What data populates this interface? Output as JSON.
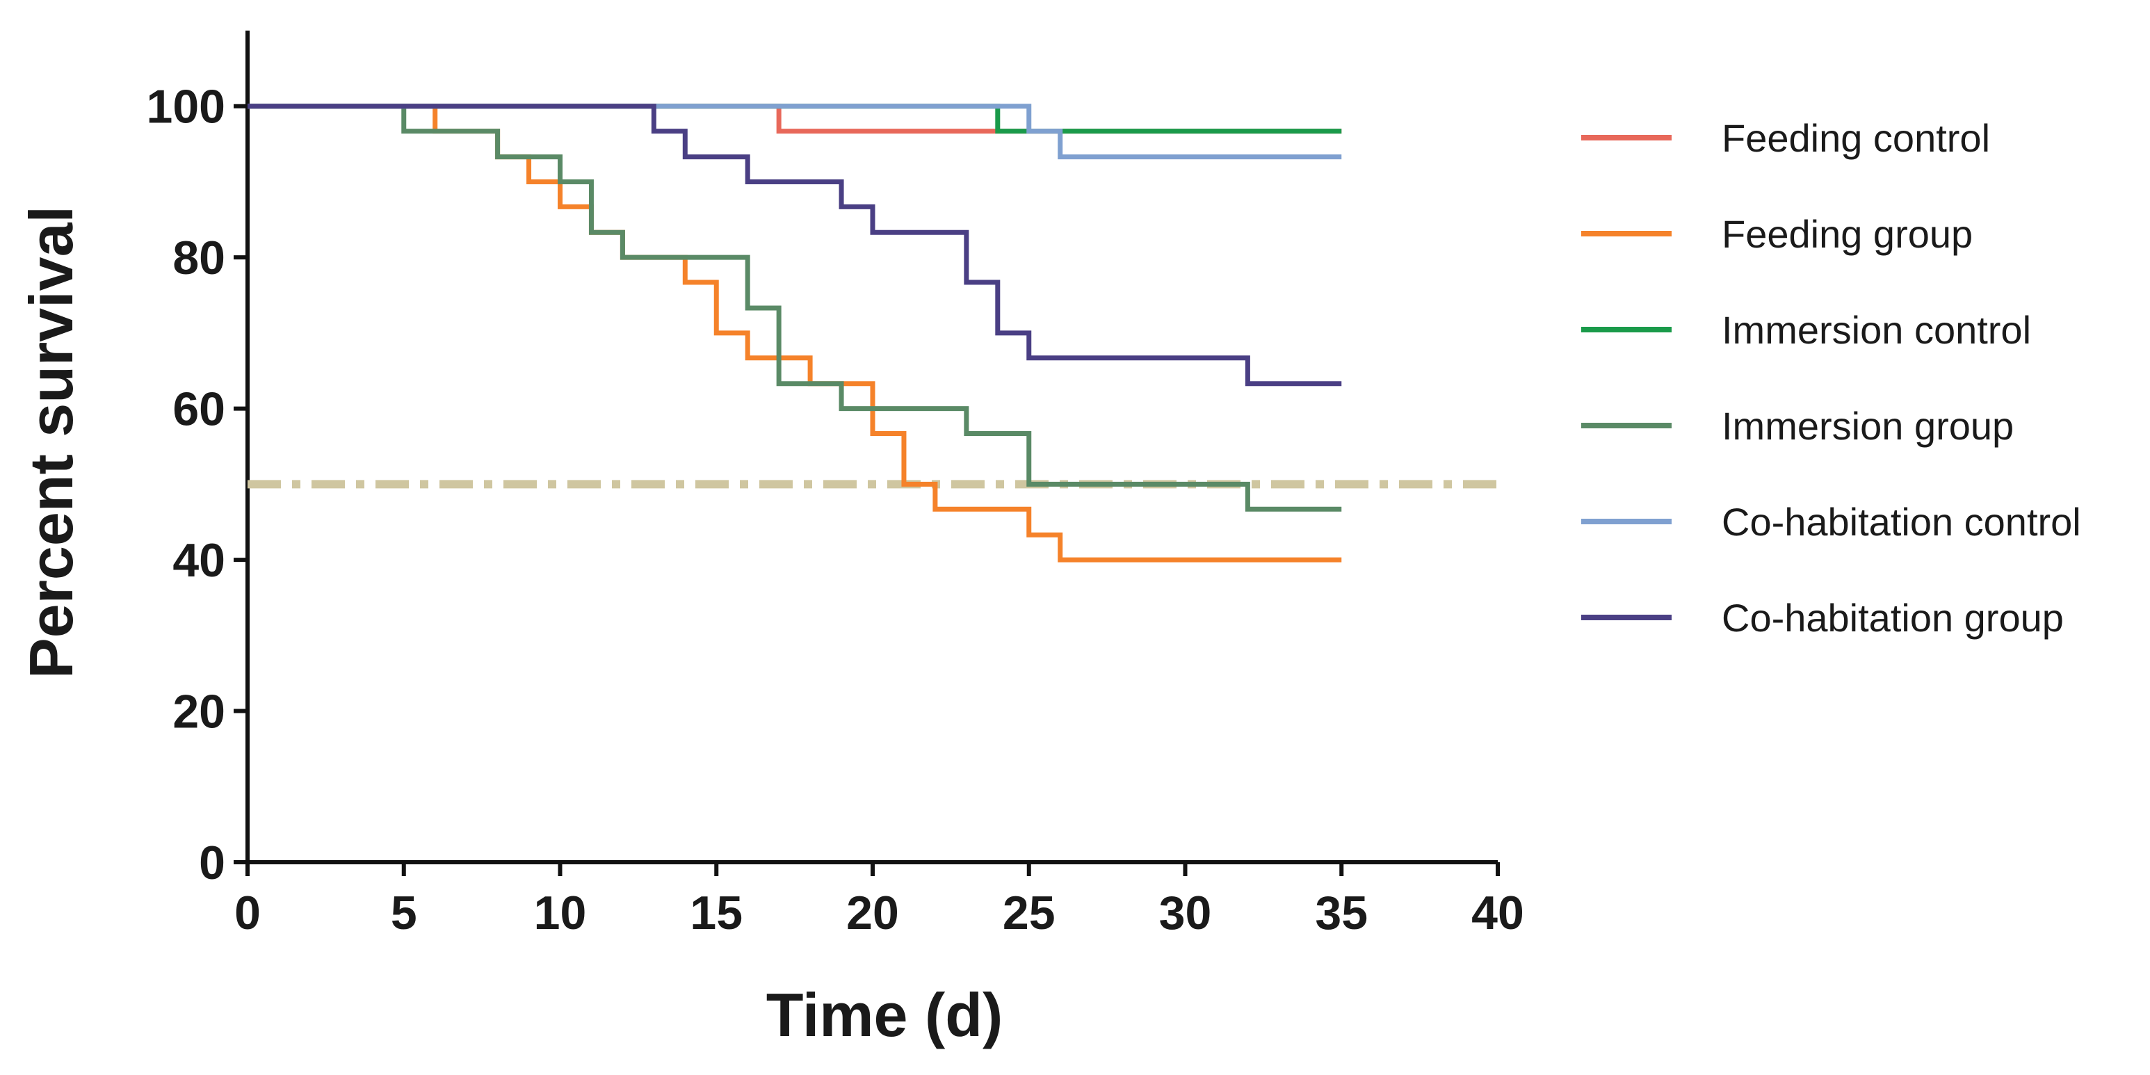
{
  "chart_data": {
    "type": "line",
    "step": true,
    "x_label": "Time (d)",
    "y_label": "Percent survival",
    "xlim": [
      0,
      40
    ],
    "xticks": [
      0,
      5,
      10,
      15,
      20,
      25,
      30,
      35,
      40
    ],
    "ylim": [
      0,
      110
    ],
    "yticks": [
      0,
      20,
      40,
      60,
      80,
      100
    ],
    "reference_line": {
      "value": 50,
      "color": "#cfc6a0"
    },
    "legend": "right",
    "series": [
      {
        "name": "Feeding control",
        "color": "#e8685a",
        "x": [
          0,
          17,
          35
        ],
        "values": [
          100,
          96.7,
          96.7
        ]
      },
      {
        "name": "Feeding group",
        "color": "#f5822a",
        "x": [
          0,
          6,
          8,
          9,
          10,
          11,
          12,
          14,
          15,
          16,
          18,
          20,
          21,
          22,
          25,
          26,
          35
        ],
        "values": [
          100,
          96.7,
          93.3,
          90,
          86.7,
          83.3,
          80,
          76.7,
          70,
          66.7,
          63.3,
          56.7,
          50,
          46.7,
          43.3,
          40,
          40
        ]
      },
      {
        "name": "Immersion control",
        "color": "#1a9a4a",
        "x": [
          0,
          24,
          35
        ],
        "values": [
          100,
          96.7,
          96.7
        ]
      },
      {
        "name": "Immersion group",
        "color": "#5a8a66",
        "x": [
          0,
          5,
          8,
          10,
          11,
          12,
          16,
          17,
          19,
          23,
          25,
          32,
          35
        ],
        "values": [
          100,
          96.7,
          93.3,
          90,
          83.3,
          80,
          73.3,
          63.3,
          60,
          56.7,
          50,
          46.7,
          46.7
        ]
      },
      {
        "name": "Co-habitation control",
        "color": "#7fa0d0",
        "x": [
          0,
          25,
          26,
          35
        ],
        "values": [
          100,
          96.7,
          93.3,
          93.3
        ]
      },
      {
        "name": "Co-habitation group",
        "color": "#4a3f84",
        "x": [
          0,
          13,
          14,
          16,
          19,
          20,
          23,
          24,
          25,
          32,
          35
        ],
        "values": [
          100,
          96.7,
          93.3,
          90,
          86.7,
          83.3,
          76.7,
          70,
          66.7,
          63.3,
          63.3
        ]
      }
    ]
  }
}
